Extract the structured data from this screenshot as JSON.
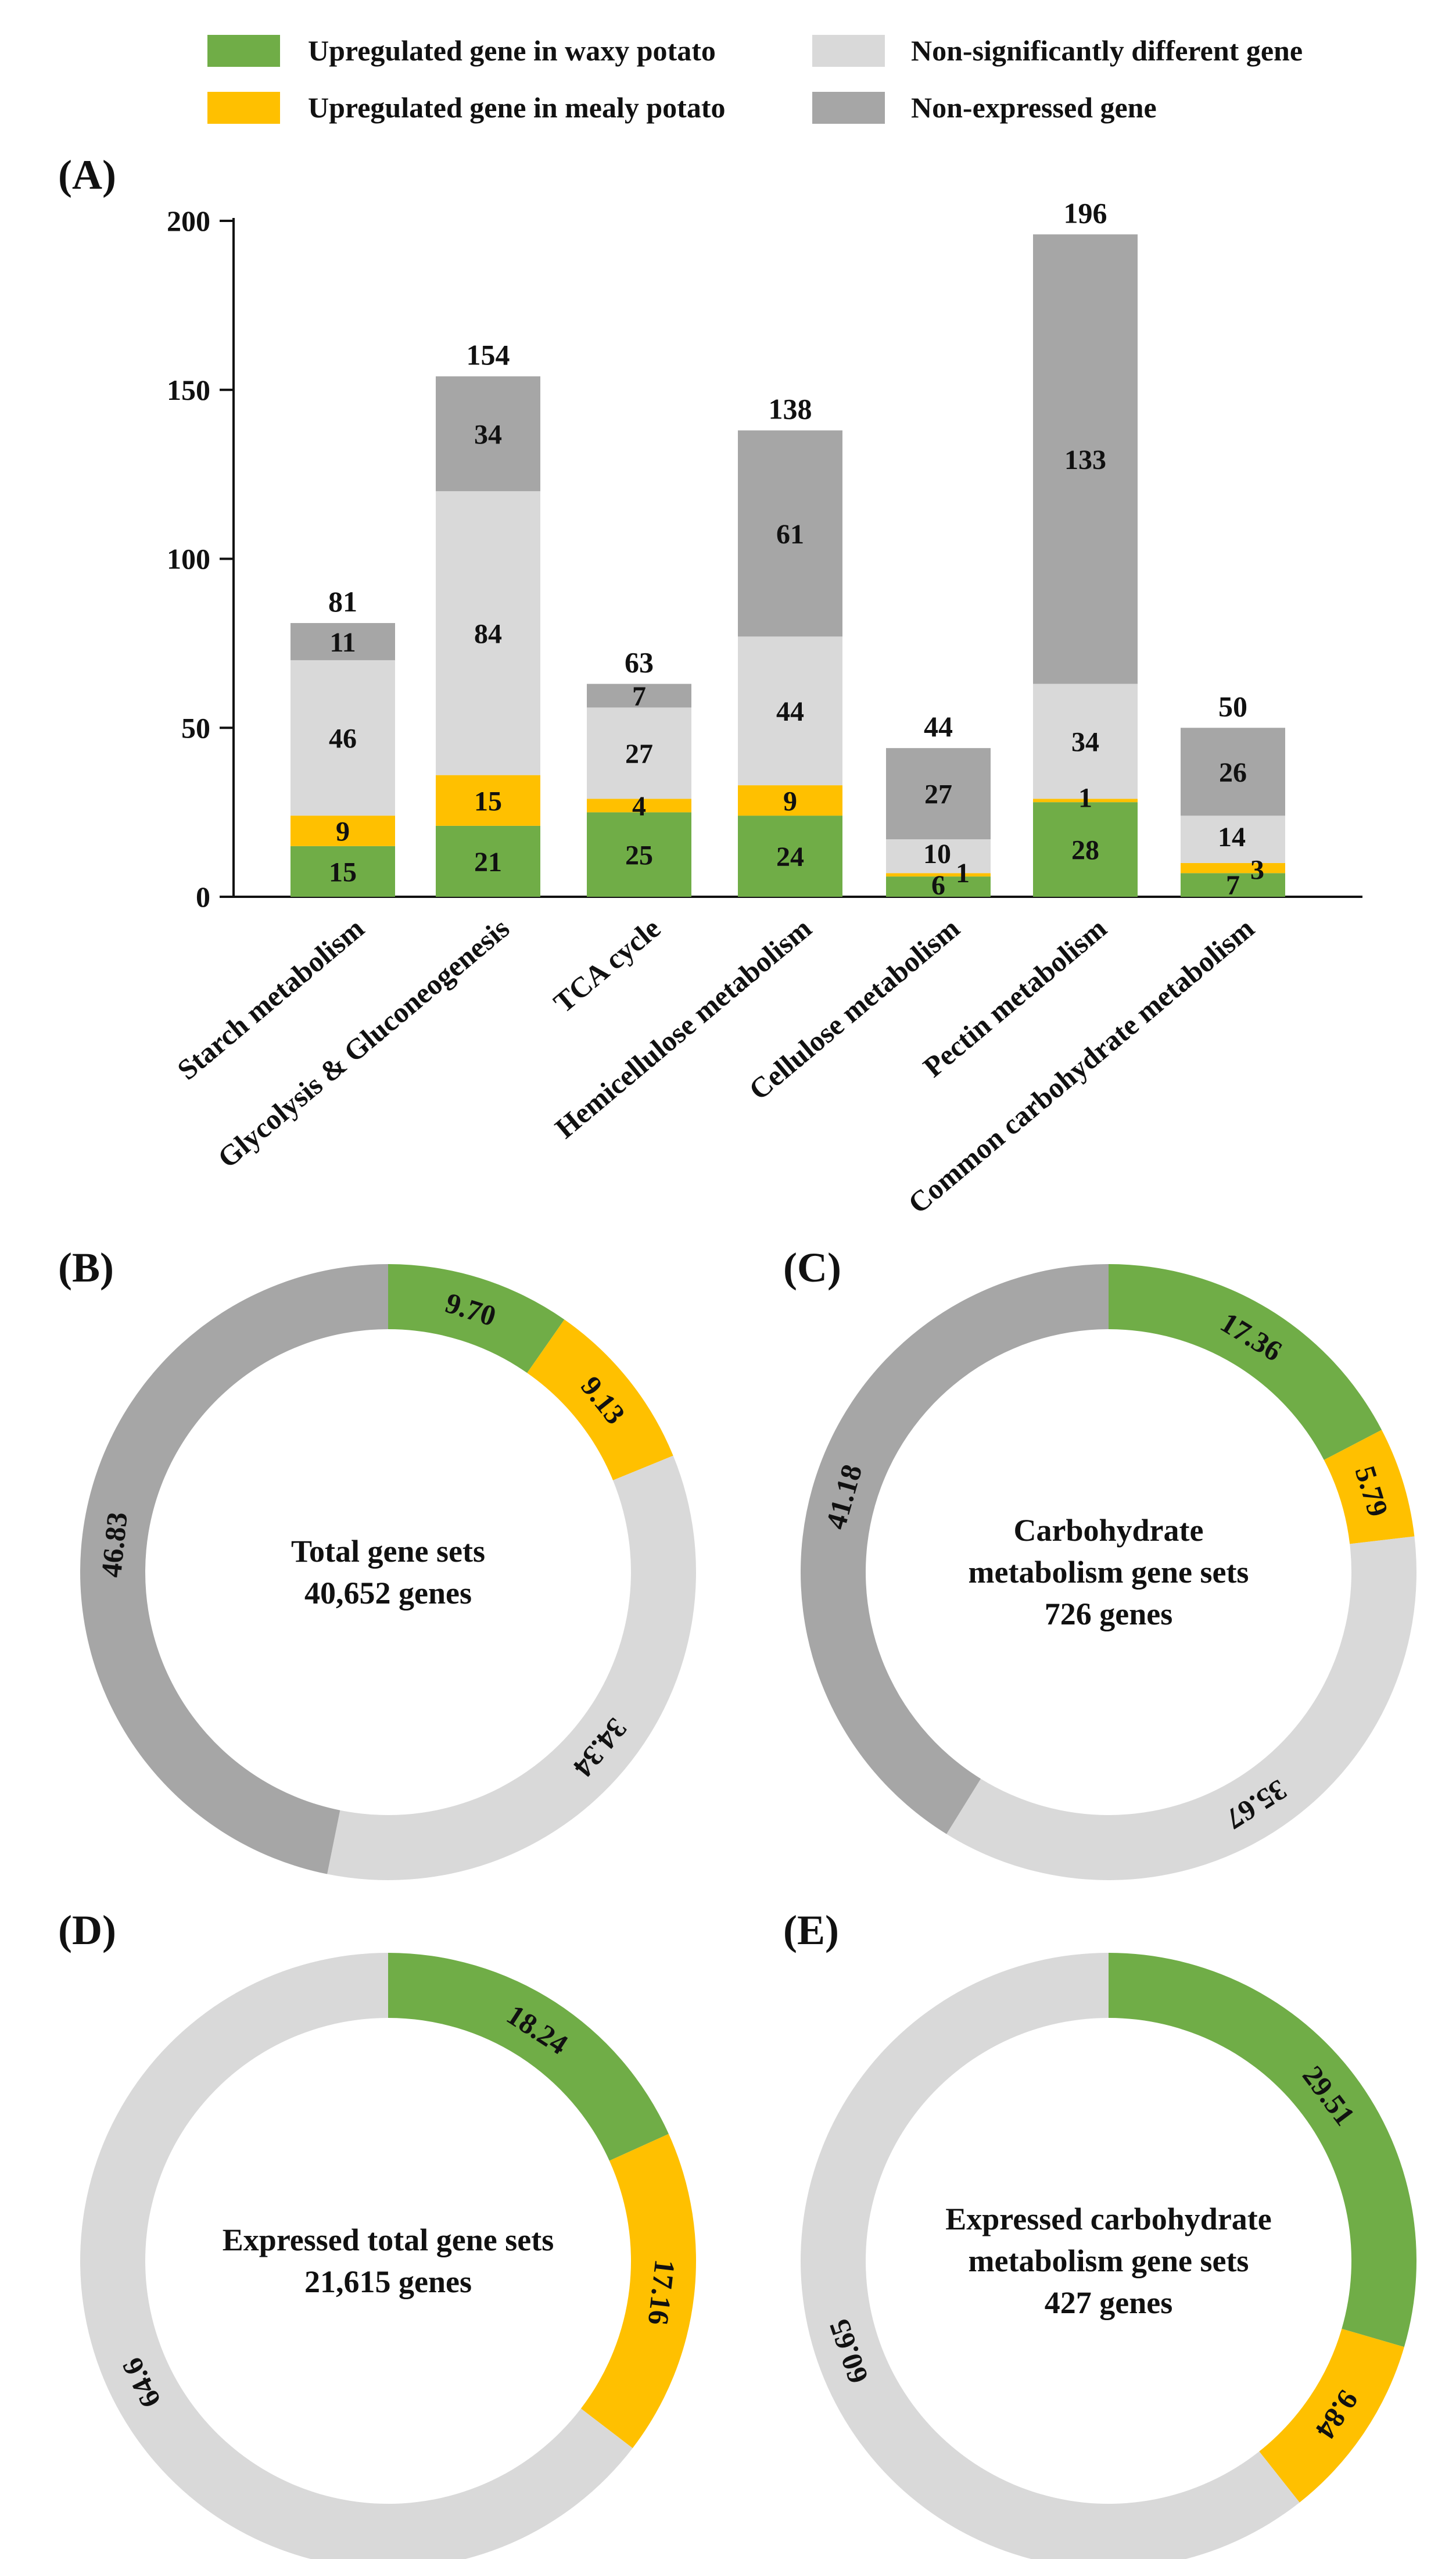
{
  "colors": {
    "waxy": "#70ad47",
    "mealy": "#ffc000",
    "nonsig": "#d9d9d9",
    "nonexp": "#a6a6a6",
    "axis": "#111111"
  },
  "legend": {
    "waxy": "Upregulated gene in waxy potato",
    "mealy": "Upregulated gene in mealy potato",
    "nonsig": "Non-significantly different gene",
    "nonexp": "Non-expressed gene"
  },
  "panels": {
    "a": "(A)",
    "b": "(B)",
    "c": "(C)",
    "d": "(D)",
    "e": "(E)"
  },
  "chart_data": [
    {
      "panel": "A",
      "type": "bar",
      "stacked": true,
      "categories": [
        "Starch metabolism",
        "Glycolysis & Gluconeogenesis",
        "TCA cycle",
        "Hemicellulose metabolism",
        "Cellulose metabolism",
        "Pectin metabolism",
        "Common carbohydrate metabolism"
      ],
      "series": [
        {
          "name": "Upregulated gene in waxy potato",
          "key": "waxy",
          "values": [
            15,
            21,
            25,
            24,
            6,
            28,
            7
          ]
        },
        {
          "name": "Upregulated gene in mealy potato",
          "key": "mealy",
          "values": [
            9,
            15,
            4,
            9,
            1,
            1,
            3
          ]
        },
        {
          "name": "Non-significantly different gene",
          "key": "nonsig",
          "values": [
            46,
            84,
            27,
            44,
            10,
            34,
            14
          ]
        },
        {
          "name": "Non-expressed gene",
          "key": "nonexp",
          "values": [
            11,
            34,
            7,
            61,
            27,
            133,
            26
          ]
        }
      ],
      "totals": [
        81,
        154,
        63,
        138,
        44,
        196,
        50
      ],
      "ylim": [
        0,
        200
      ],
      "yticks": [
        0,
        50,
        100,
        150,
        200
      ],
      "xlabel": "",
      "ylabel": "",
      "legend_position": "top"
    },
    {
      "panel": "B",
      "type": "pie",
      "donut": true,
      "center_lines": [
        "Total gene sets",
        "40,652 genes"
      ],
      "slices": [
        {
          "key": "waxy",
          "value": 9.7,
          "label": "9.70"
        },
        {
          "key": "mealy",
          "value": 9.13,
          "label": "9.13"
        },
        {
          "key": "nonsig",
          "value": 34.34,
          "label": "34.34"
        },
        {
          "key": "nonexp",
          "value": 46.83,
          "label": "46.83"
        }
      ]
    },
    {
      "panel": "C",
      "type": "pie",
      "donut": true,
      "center_lines": [
        "Carbohydrate",
        "metabolism gene sets",
        "726 genes"
      ],
      "slices": [
        {
          "key": "waxy",
          "value": 17.36,
          "label": "17.36"
        },
        {
          "key": "mealy",
          "value": 5.79,
          "label": "5.79"
        },
        {
          "key": "nonsig",
          "value": 35.67,
          "label": "35.67"
        },
        {
          "key": "nonexp",
          "value": 41.18,
          "label": "41.18"
        }
      ]
    },
    {
      "panel": "D",
      "type": "pie",
      "donut": true,
      "center_lines": [
        "Expressed total gene sets",
        "21,615 genes"
      ],
      "slices": [
        {
          "key": "waxy",
          "value": 18.24,
          "label": "18.24"
        },
        {
          "key": "mealy",
          "value": 17.16,
          "label": "17.16"
        },
        {
          "key": "nonsig",
          "value": 64.6,
          "label": "64.6"
        }
      ]
    },
    {
      "panel": "E",
      "type": "pie",
      "donut": true,
      "center_lines": [
        "Expressed carbohydrate",
        "metabolism gene sets",
        "427 genes"
      ],
      "slices": [
        {
          "key": "waxy",
          "value": 29.51,
          "label": "29.51"
        },
        {
          "key": "mealy",
          "value": 9.84,
          "label": "9.84"
        },
        {
          "key": "nonsig",
          "value": 60.65,
          "label": "60.65"
        }
      ]
    }
  ]
}
